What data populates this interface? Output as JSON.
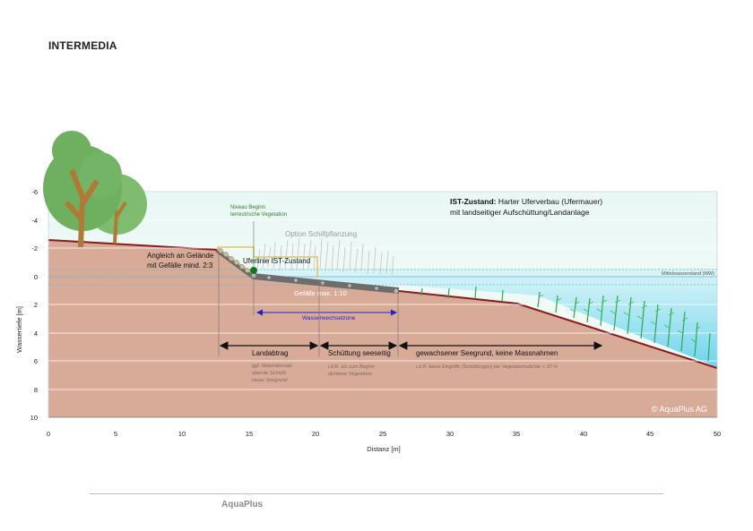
{
  "header": {
    "brand": "INTERMEDIA"
  },
  "footer": {
    "label": "AquaPlus"
  },
  "diagram": {
    "state_title_bold": "IST-Zustand:",
    "state_title_rest": " Harter Uferverbau (Ufermauer)",
    "state_subtitle": "mit landseitiger Aufschüttung/Landanlage",
    "niveau_line1": "Niveau Beginn",
    "niveau_line2": "terrestrische Vegetation",
    "option_reed": "Option Schilfpflanzung",
    "angleich_line1": "Angleich an Gelände",
    "angleich_line2": "mit Gefälle mind. 2:3",
    "uferlinie": "Uferlinie IST-Zustand",
    "mittelwasser": "Mittelwasserstand (MW)",
    "gefaelle": "Gefälle",
    "gefaelle_value": "max. 1:10",
    "wasserwechsel": "Wasserwechselzone",
    "landabtrag": "Landabtrag",
    "schuettung": "Schüttung seeseitig",
    "seegrund": "gewachsener Seegrund, keine Massnahmen",
    "note_land_1": "ggf. Materialersatz",
    "note_land_2": "oberste Schicht",
    "note_land_3": "neuer Seegrund",
    "note_schuett_1": "i.d.R. bis zum Beginn",
    "note_schuett_2": "dichterer Vegetation",
    "note_seegrund": "i.d.R. keine Eingriffe (Schüttungen) bei Vegetationsdichte > 10 %",
    "copyright": "© AquaPlus AG",
    "xlabel": "Distanz [m]",
    "ylabel": "Wassertiefe [m]",
    "x_ticks": [
      "0",
      "5",
      "10",
      "15",
      "20",
      "25",
      "30",
      "35",
      "40",
      "45",
      "50"
    ],
    "y_ticks": [
      "-6",
      "-4",
      "-2",
      "0",
      "2",
      "4",
      "6",
      "8",
      "10"
    ],
    "colors": {
      "soil": "#d8ab98",
      "soil_line": "#8b1a1a",
      "water": "#9fe3f3",
      "arrow_blue": "#2323c8",
      "reed_green": "#2fa84c",
      "tree_green": "#79b86a",
      "trunk": "#b07a36"
    }
  }
}
